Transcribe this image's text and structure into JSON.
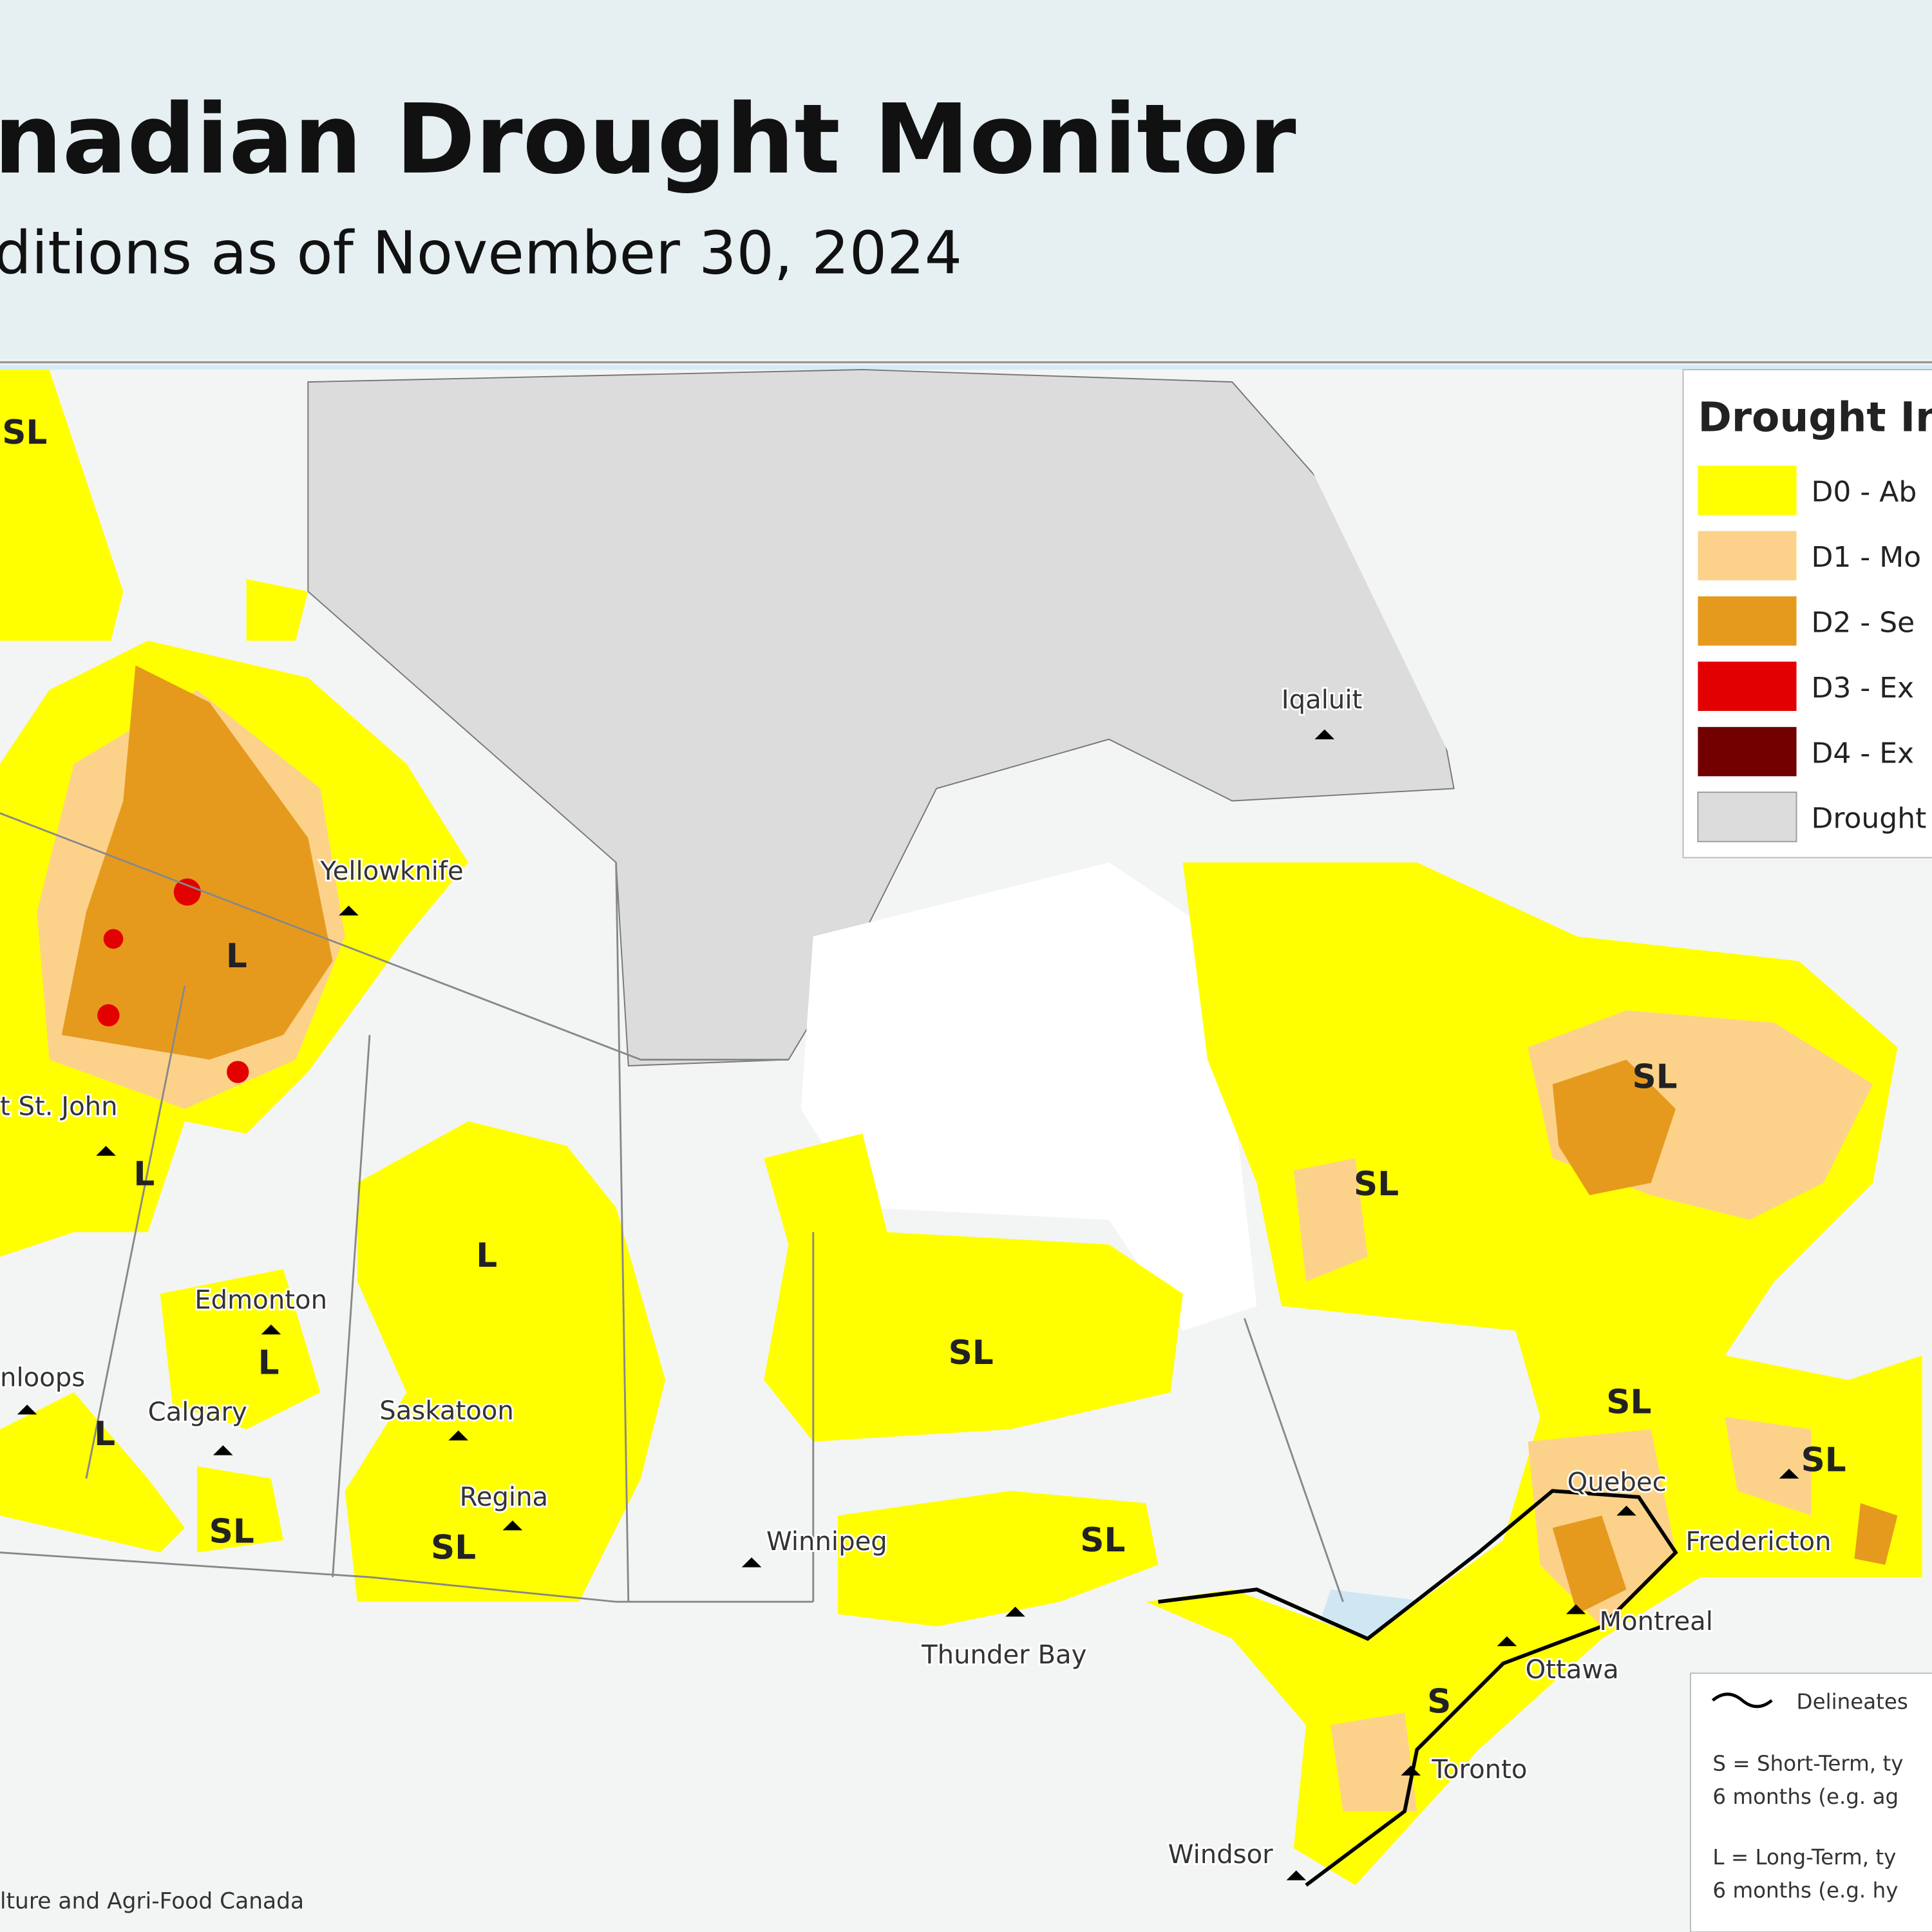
{
  "header": {
    "title": "nadian Drought Monitor",
    "subtitle": "ditions as of November 30, 2024"
  },
  "map": {
    "cities": [
      "Yellowknife",
      "Iqaluit",
      "t St. John",
      "Edmonton",
      "nloops",
      "Calgary",
      "Saskatoon",
      "Regina",
      "Winnipeg",
      "Thunder Bay",
      "Quebec",
      "Fredericton",
      "Montreal",
      "Ottawa",
      "Toronto",
      "Windsor"
    ],
    "region_labels": [
      "SL",
      "L",
      "L",
      "L",
      "L",
      "L",
      "SL",
      "SL",
      "SL",
      "SL",
      "SL",
      "SL",
      "SL",
      "SL",
      "S"
    ]
  },
  "legend": {
    "title": "Drought In",
    "items": [
      "D0 - Ab",
      "D1 - Mo",
      "D2 - Se",
      "D3 - Ex",
      "D4 - Ex",
      "Drought"
    ]
  },
  "notes": {
    "line": "Delineates",
    "short_1": "S = Short-Term, ty",
    "short_2": "6 months (e.g. ag",
    "long_1": "L = Long-Term, ty",
    "long_2": "6 months (e.g. hy"
  },
  "credit": "lture and Agri-Food Canada"
}
